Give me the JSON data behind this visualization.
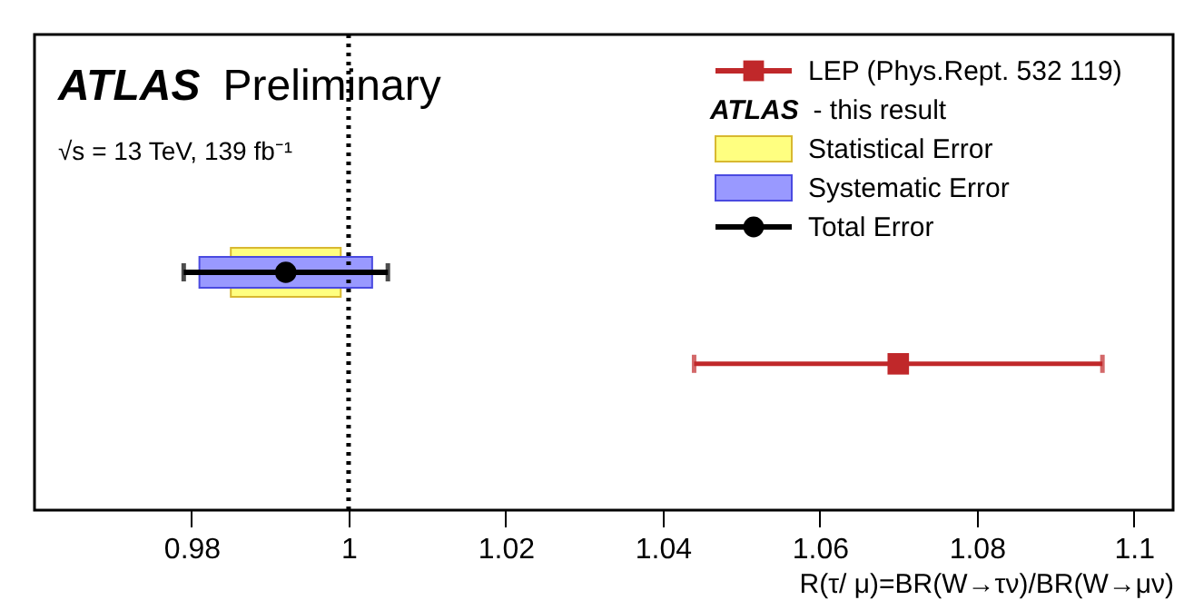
{
  "chart_data": {
    "type": "scatter",
    "orientation": "horizontal",
    "title": "ATLAS Preliminary",
    "subtitle": "√s = 13 TeV, 139 fb⁻¹",
    "xlabel": "R(τ/ μ)=BR(W→τν)/BR(W→μν)",
    "annotations": [
      "ATLAS - this result"
    ],
    "categories": [
      null,
      null,
      null,
      null,
      null
    ],
    "xlim": [
      0.96,
      1.105
    ],
    "xticks": [
      0.98,
      1,
      1.02,
      1.04,
      1.06,
      1.08,
      1.1
    ],
    "series": [
      {
        "name": "LEP (Phys.Rept. 532 119)",
        "marker": "square",
        "color": "#c0282a",
        "values": [
          null,
          null,
          null,
          1.07,
          null
        ],
        "errors": [
          null,
          null,
          null,
          0.026,
          null
        ]
      },
      {
        "name": "Statistical Error",
        "type": "bar",
        "color": "#ffff80",
        "base": [
          null,
          null,
          0.985,
          null,
          null
        ],
        "values": [
          null,
          null,
          0.014,
          null,
          null
        ]
      },
      {
        "name": "Systematic Error",
        "type": "bar",
        "color": "#9999ff",
        "base": [
          null,
          null,
          0.981,
          null,
          null
        ],
        "values": [
          null,
          null,
          0.022,
          null,
          null
        ]
      },
      {
        "name": "Total Error",
        "marker": "circle",
        "color": "#000000",
        "values": [
          null,
          null,
          0.992,
          null,
          null
        ],
        "errors": [
          null,
          null,
          0.013,
          null,
          null
        ]
      }
    ],
    "ref_lines": [
      {
        "axis": "x",
        "value": 1,
        "color": "#000000",
        "line_style": "dotted"
      }
    ],
    "legend": "top right",
    "grid": false
  }
}
